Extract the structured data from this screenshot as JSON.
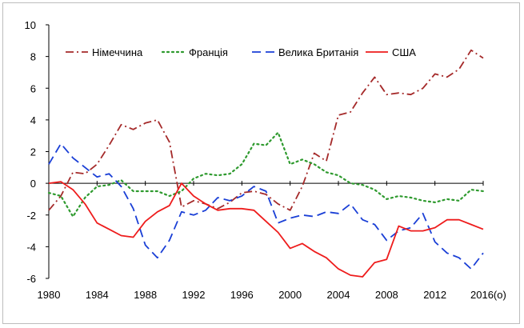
{
  "chart_data": {
    "type": "line",
    "title": "",
    "xlabel": "",
    "ylabel": "",
    "xlim": [
      1980,
      2016
    ],
    "ylim": [
      -6,
      10
    ],
    "y_ticks": [
      -6,
      -4,
      -2,
      0,
      2,
      4,
      6,
      8,
      10
    ],
    "x_ticks": [
      1980,
      1984,
      1988,
      1992,
      1996,
      2000,
      2004,
      2008,
      2012,
      2016
    ],
    "x_tick_labels": [
      "1980",
      "1984",
      "1988",
      "1992",
      "1996",
      "2000",
      "2004",
      "2008",
      "2012",
      "2016(o)"
    ],
    "grid": false,
    "legend_position": "top",
    "x": [
      1980,
      1981,
      1982,
      1983,
      1984,
      1985,
      1986,
      1987,
      1988,
      1989,
      1990,
      1991,
      1992,
      1993,
      1994,
      1995,
      1996,
      1997,
      1998,
      1999,
      2000,
      2001,
      2002,
      2003,
      2004,
      2005,
      2006,
      2007,
      2008,
      2009,
      2010,
      2011,
      2012,
      2013,
      2014,
      2015,
      2016
    ],
    "series": [
      {
        "name": "Німеччина",
        "color": "#a52a2a",
        "dash": "dashdot",
        "values": [
          -1.7,
          -0.8,
          0.7,
          0.6,
          1.2,
          2.4,
          3.7,
          3.4,
          3.8,
          4.0,
          2.6,
          -1.5,
          -1.1,
          -1.3,
          -1.6,
          -1.2,
          -0.6,
          -0.5,
          -0.7,
          -1.3,
          -1.7,
          -0.2,
          1.9,
          1.4,
          4.3,
          4.5,
          5.7,
          6.7,
          5.6,
          5.7,
          5.6,
          6.0,
          6.9,
          6.7,
          7.2,
          8.4,
          7.9
        ]
      },
      {
        "name": "Франція",
        "color": "#2e9a2e",
        "dash": "dot",
        "values": [
          -0.6,
          -0.8,
          -2.1,
          -0.9,
          -0.2,
          -0.1,
          0.2,
          -0.5,
          -0.5,
          -0.5,
          -0.8,
          -0.5,
          0.3,
          0.6,
          0.5,
          0.6,
          1.2,
          2.5,
          2.4,
          3.2,
          1.2,
          1.5,
          1.2,
          0.7,
          0.5,
          0.0,
          -0.1,
          -0.4,
          -1.0,
          -0.8,
          -0.9,
          -1.1,
          -1.2,
          -1.0,
          -1.1,
          -0.4,
          -0.5
        ]
      },
      {
        "name": "Велика Британія",
        "color": "#1a3fd6",
        "dash": "dash",
        "values": [
          1.2,
          2.5,
          1.6,
          1.0,
          0.4,
          0.6,
          -0.2,
          -1.6,
          -3.9,
          -4.7,
          -3.6,
          -1.8,
          -2.0,
          -1.7,
          -0.9,
          -1.1,
          -0.8,
          -0.2,
          -0.5,
          -2.5,
          -2.2,
          -2.0,
          -2.1,
          -1.8,
          -1.9,
          -1.3,
          -2.3,
          -2.6,
          -3.6,
          -3.0,
          -2.8,
          -1.9,
          -3.7,
          -4.4,
          -4.7,
          -5.4,
          -4.4
        ]
      },
      {
        "name": "США",
        "color": "#ee1c1c",
        "dash": "solid",
        "values": [
          0.0,
          0.1,
          -0.4,
          -1.3,
          -2.5,
          -2.9,
          -3.3,
          -3.4,
          -2.4,
          -1.8,
          -1.4,
          0.0,
          -0.8,
          -1.3,
          -1.7,
          -1.6,
          -1.6,
          -1.7,
          -2.4,
          -3.1,
          -4.1,
          -3.8,
          -4.3,
          -4.7,
          -5.4,
          -5.8,
          -5.9,
          -5.0,
          -4.8,
          -2.7,
          -3.0,
          -3.0,
          -2.8,
          -2.3,
          -2.3,
          -2.6,
          -2.9
        ]
      }
    ]
  }
}
